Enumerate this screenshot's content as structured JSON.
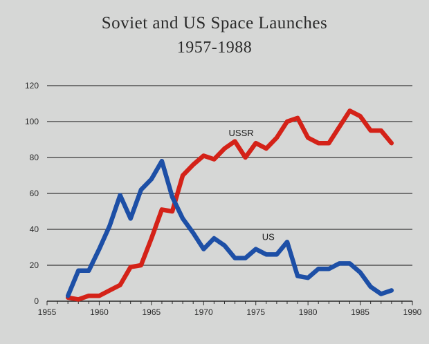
{
  "chart_data": {
    "type": "line",
    "title": "Soviet and US Space Launches",
    "subtitle": "1957-1988",
    "xlabel": "",
    "ylabel": "",
    "xlim": [
      1955,
      1990
    ],
    "ylim": [
      0,
      120
    ],
    "x_ticks": [
      1955,
      1960,
      1965,
      1970,
      1975,
      1980,
      1985,
      1990
    ],
    "y_ticks": [
      0,
      20,
      40,
      60,
      80,
      100,
      120
    ],
    "grid": "horizontal",
    "legend": "none",
    "x": [
      1957,
      1958,
      1959,
      1960,
      1961,
      1962,
      1963,
      1964,
      1965,
      1966,
      1967,
      1968,
      1969,
      1970,
      1971,
      1972,
      1973,
      1974,
      1975,
      1976,
      1977,
      1978,
      1979,
      1980,
      1981,
      1982,
      1983,
      1984,
      1985,
      1986,
      1987,
      1988
    ],
    "series": [
      {
        "name": "USSR",
        "color": "#d42218",
        "values": [
          2,
          1,
          3,
          3,
          6,
          9,
          19,
          20,
          35,
          51,
          50,
          70,
          76,
          81,
          79,
          85,
          89,
          80,
          88,
          85,
          91,
          100,
          102,
          91,
          88,
          88,
          97,
          106,
          103,
          95,
          95,
          88
        ]
      },
      {
        "name": "US",
        "color": "#1d4fa6",
        "values": [
          3,
          17,
          17,
          29,
          42,
          59,
          46,
          62,
          68,
          78,
          58,
          46,
          38,
          29,
          35,
          31,
          24,
          24,
          29,
          26,
          26,
          33,
          14,
          13,
          18,
          18,
          21,
          21,
          16,
          8,
          4,
          6
        ]
      }
    ]
  }
}
